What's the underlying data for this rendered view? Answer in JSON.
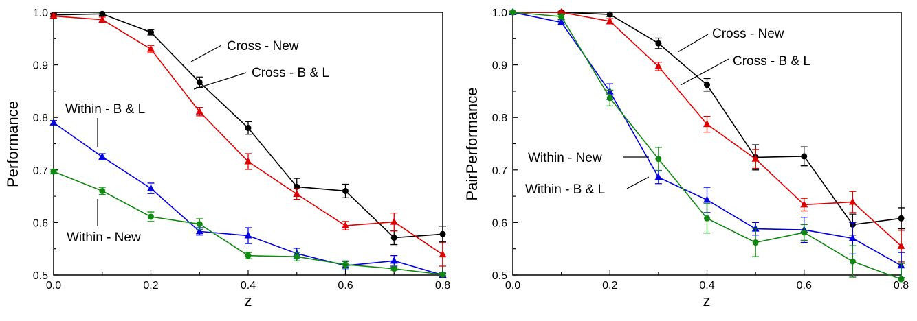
{
  "chart_data": [
    {
      "type": "line",
      "xlabel": "z",
      "ylabel": "Performance",
      "xlim": [
        0.0,
        0.8
      ],
      "ylim": [
        0.5,
        1.0
      ],
      "x_ticks": [
        "0.0",
        "0.2",
        "0.4",
        "0.6",
        "0.8"
      ],
      "y_ticks": [
        "0.5",
        "0.6",
        "0.7",
        "0.8",
        "0.9",
        "1.0"
      ],
      "x": [
        0.0,
        0.1,
        0.2,
        0.3,
        0.4,
        0.5,
        0.6,
        0.7,
        0.8
      ],
      "series": [
        {
          "color": "#000000",
          "marker": "circle",
          "values": [
            0.995,
            0.997,
            0.962,
            0.867,
            0.78,
            0.668,
            0.66,
            0.571,
            0.578
          ],
          "errors": [
            0.003,
            0.003,
            0.005,
            0.01,
            0.012,
            0.016,
            0.013,
            0.013,
            0.015
          ]
        },
        {
          "color": "#e00000",
          "marker": "triangle",
          "values": [
            0.993,
            0.986,
            0.93,
            0.811,
            0.716,
            0.654,
            0.594,
            0.601,
            0.539
          ],
          "errors": [
            0.004,
            0.005,
            0.007,
            0.008,
            0.015,
            0.01,
            0.008,
            0.017,
            0.022
          ]
        },
        {
          "color": "#0000e0",
          "marker": "triangle",
          "values": [
            0.79,
            0.725,
            0.665,
            0.583,
            0.575,
            0.541,
            0.518,
            0.527,
            0.5
          ],
          "errors": [
            0.004,
            0.006,
            0.01,
            0.007,
            0.015,
            0.01,
            0.008,
            0.01,
            0.004
          ]
        },
        {
          "color": "#118811",
          "marker": "circle",
          "values": [
            0.697,
            0.66,
            0.611,
            0.597,
            0.537,
            0.535,
            0.52,
            0.512,
            0.501
          ],
          "errors": [
            0.004,
            0.007,
            0.009,
            0.01,
            0.006,
            0.008,
            0.007,
            0.003,
            0.002
          ]
        }
      ],
      "annotations": [
        {
          "text": "Cross - New"
        },
        {
          "text": "Cross - B & L"
        },
        {
          "text": "Within - B & L"
        },
        {
          "text": "Within - New"
        }
      ]
    },
    {
      "type": "line",
      "xlabel": "z",
      "ylabel": "PairPerformance",
      "xlim": [
        0.0,
        0.8
      ],
      "ylim": [
        0.5,
        1.0
      ],
      "x_ticks": [
        "0.0",
        "0.2",
        "0.4",
        "0.6",
        "0.8"
      ],
      "y_ticks": [
        "0.5",
        "0.6",
        "0.7",
        "0.8",
        "0.9",
        "1.0"
      ],
      "x": [
        0.0,
        0.1,
        0.2,
        0.3,
        0.4,
        0.5,
        0.6,
        0.7,
        0.8
      ],
      "series": [
        {
          "color": "#000000",
          "marker": "circle",
          "values": [
            1.0,
            1.0,
            0.996,
            0.941,
            0.862,
            0.724,
            0.726,
            0.596,
            0.608
          ],
          "errors": [
            0.002,
            0.002,
            0.004,
            0.01,
            0.012,
            0.024,
            0.018,
            0.02,
            0.02
          ]
        },
        {
          "color": "#e00000",
          "marker": "triangle",
          "values": [
            1.0,
            1.0,
            0.983,
            0.897,
            0.787,
            0.721,
            0.634,
            0.639,
            0.555
          ],
          "errors": [
            0.002,
            0.002,
            0.005,
            0.008,
            0.015,
            0.018,
            0.012,
            0.02,
            0.03
          ]
        },
        {
          "color": "#0000e0",
          "marker": "triangle",
          "values": [
            1.0,
            0.981,
            0.849,
            0.686,
            0.643,
            0.588,
            0.586,
            0.57,
            0.518
          ],
          "errors": [
            0.002,
            0.005,
            0.015,
            0.012,
            0.024,
            0.012,
            0.024,
            0.03,
            0.025
          ]
        },
        {
          "color": "#118811",
          "marker": "circle",
          "values": [
            1.0,
            0.992,
            0.837,
            0.721,
            0.608,
            0.562,
            0.581,
            0.526,
            0.492
          ],
          "errors": [
            0.002,
            0.005,
            0.015,
            0.022,
            0.028,
            0.027,
            0.015,
            0.03,
            0.03
          ]
        }
      ],
      "annotations": [
        {
          "text": "Cross - New"
        },
        {
          "text": "Cross - B & L"
        },
        {
          "text": "Within - New"
        },
        {
          "text": "Within - B & L"
        }
      ]
    }
  ]
}
